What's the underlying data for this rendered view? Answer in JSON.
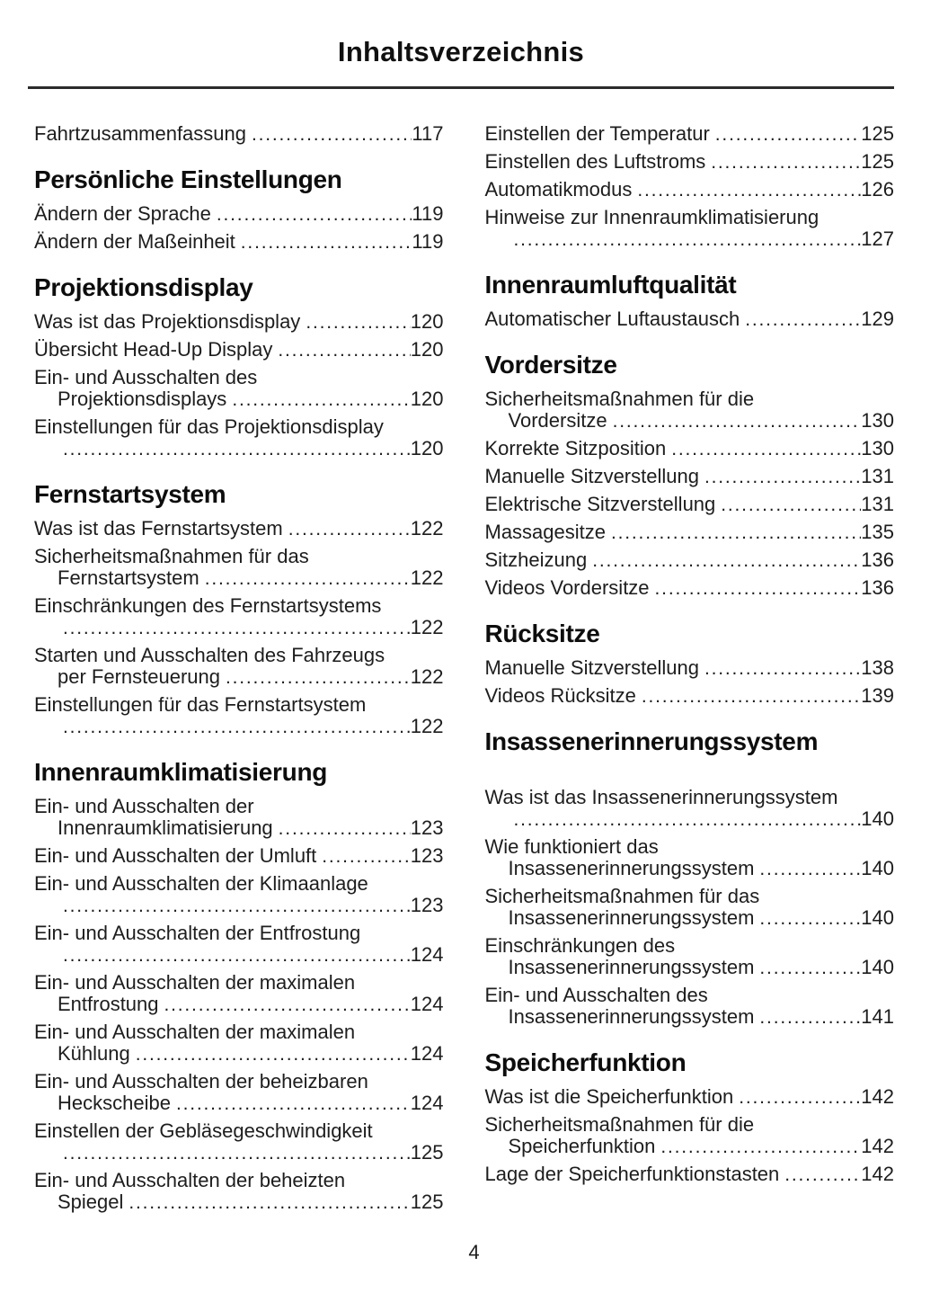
{
  "page": {
    "title": "Inhaltsverzeichnis",
    "number": "4"
  },
  "columns": [
    {
      "blocks": [
        {
          "entries": [
            {
              "text": "Fahrtzusammenfassung",
              "page": "117"
            }
          ]
        },
        {
          "heading": "Persönliche Einstellungen",
          "entries": [
            {
              "text": "Ändern der Sprache",
              "page": "119"
            },
            {
              "text": "Ändern der Maßeinheit",
              "page": "119"
            }
          ]
        },
        {
          "heading": "Projektionsdisplay",
          "entries": [
            {
              "text": "Was ist das Projektionsdisplay",
              "page": "120"
            },
            {
              "text": "Übersicht Head-Up Display",
              "page": "120"
            },
            {
              "text": "Ein- und Ausschalten des",
              "cont": "Projektionsdisplays",
              "page": "120"
            },
            {
              "text": "Einstellungen für das Projektionsdisplay",
              "cont": "",
              "page": "120"
            }
          ]
        },
        {
          "heading": "Fernstartsystem",
          "entries": [
            {
              "text": "Was ist das Fernstartsystem",
              "page": "122"
            },
            {
              "text": "Sicherheitsmaßnahmen für das",
              "cont": "Fernstartsystem",
              "page": "122"
            },
            {
              "text": "Einschränkungen des Fernstartsystems",
              "cont": "",
              "page": "122"
            },
            {
              "text": "Starten und Ausschalten des Fahrzeugs",
              "cont": "per Fernsteuerung",
              "page": "122"
            },
            {
              "text": "Einstellungen für das Fernstartsystem",
              "cont": "",
              "page": "122"
            }
          ]
        },
        {
          "heading": "Innenraumklimatisierung",
          "entries": [
            {
              "text": "Ein- und Ausschalten der",
              "cont": "Innenraumklimatisierung",
              "page": "123"
            },
            {
              "text": "Ein- und Ausschalten der Umluft",
              "page": "123"
            },
            {
              "text": "Ein- und Ausschalten der Klimaanlage",
              "cont": "",
              "page": "123"
            },
            {
              "text": "Ein- und Ausschalten der Entfrostung",
              "cont": "",
              "page": "124"
            },
            {
              "text": "Ein- und Ausschalten der maximalen",
              "cont": "Entfrostung",
              "page": "124"
            },
            {
              "text": "Ein- und Ausschalten der maximalen",
              "cont": "Kühlung",
              "page": "124"
            },
            {
              "text": "Ein- und Ausschalten der beheizbaren",
              "cont": "Heckscheibe",
              "page": "124"
            },
            {
              "text": "Einstellen der Gebläsegeschwindigkeit",
              "cont": "",
              "page": "125"
            },
            {
              "text": "Ein- und Ausschalten der beheizten",
              "cont": "Spiegel",
              "page": "125"
            }
          ]
        }
      ]
    },
    {
      "blocks": [
        {
          "entries": [
            {
              "text": "Einstellen der Temperatur",
              "page": "125"
            },
            {
              "text": "Einstellen des Luftstroms",
              "page": "125"
            },
            {
              "text": "Automatikmodus",
              "page": "126"
            },
            {
              "text": "Hinweise zur Innenraumklimatisierung",
              "cont": "",
              "page": "127"
            }
          ]
        },
        {
          "heading": "Innenraumluftqualität",
          "entries": [
            {
              "text": "Automatischer Luftaustausch",
              "page": "129"
            }
          ]
        },
        {
          "heading": "Vordersitze",
          "entries": [
            {
              "text": "Sicherheitsmaßnahmen für die",
              "cont": "Vordersitze",
              "page": "130"
            },
            {
              "text": "Korrekte Sitzposition",
              "page": "130"
            },
            {
              "text": "Manuelle Sitzverstellung",
              "page": "131"
            },
            {
              "text": "Elektrische Sitzverstellung",
              "page": "131"
            },
            {
              "text": "Massagesitze",
              "page": "135"
            },
            {
              "text": "Sitzheizung",
              "page": "136"
            },
            {
              "text": "Videos Vordersitze",
              "page": "136"
            }
          ]
        },
        {
          "heading": "Rücksitze",
          "entries": [
            {
              "text": "Manuelle Sitzverstellung",
              "page": "138"
            },
            {
              "text": "Videos Rücksitze",
              "page": "139"
            }
          ]
        },
        {
          "heading": "Insassenerinnerungssystem",
          "extra_gap": true,
          "entries": [
            {
              "text": "Was ist das Insassenerinnerungssystem",
              "cont": "",
              "page": "140"
            },
            {
              "text": "Wie funktioniert das",
              "cont": "Insassenerinnerungssystem",
              "page": "140"
            },
            {
              "text": "Sicherheitsmaßnahmen für das",
              "cont": "Insassenerinnerungssystem",
              "page": "140"
            },
            {
              "text": "Einschränkungen des",
              "cont": "Insassenerinnerungssystem",
              "page": "140"
            },
            {
              "text": "Ein- und Ausschalten des",
              "cont": "Insassenerinnerungssystem",
              "page": "141"
            }
          ]
        },
        {
          "heading": "Speicherfunktion",
          "entries": [
            {
              "text": "Was ist die Speicherfunktion",
              "page": "142"
            },
            {
              "text": "Sicherheitsmaßnahmen für die",
              "cont": "Speicherfunktion",
              "page": "142"
            },
            {
              "text": "Lage der Speicherfunktionstasten",
              "page": "142"
            }
          ]
        }
      ]
    }
  ]
}
